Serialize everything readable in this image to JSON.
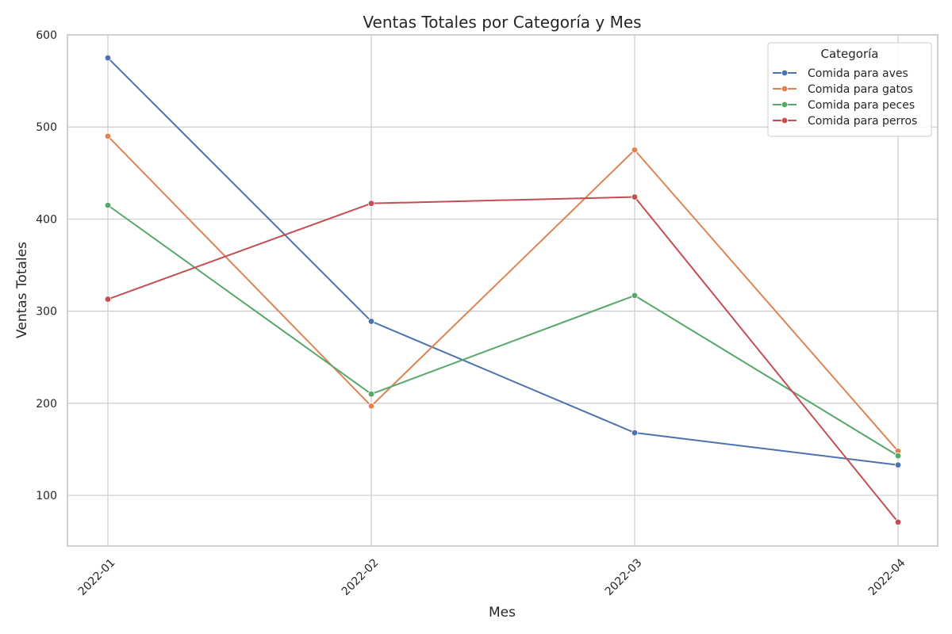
{
  "chart_data": {
    "type": "line",
    "title": "Ventas Totales por Categoría y Mes",
    "xlabel": "Mes",
    "ylabel": "Ventas Totales",
    "x": [
      "2022-01",
      "2022-02",
      "2022-03",
      "2022-04"
    ],
    "ylim": [
      45,
      600
    ],
    "yticks": [
      100,
      200,
      300,
      400,
      500,
      600
    ],
    "grid": true,
    "legend": {
      "title": "Categoría",
      "placement": "top-right"
    },
    "series": [
      {
        "name": "Comida para aves",
        "color": "#4c72b0",
        "values": [
          575,
          289,
          168,
          133
        ]
      },
      {
        "name": "Comida para gatos",
        "color": "#dd8452",
        "values": [
          490,
          197,
          475,
          148
        ]
      },
      {
        "name": "Comida para peces",
        "color": "#55a868",
        "values": [
          415,
          210,
          317,
          143
        ]
      },
      {
        "name": "Comida para perros",
        "color": "#c44e52",
        "values": [
          313,
          417,
          424,
          71
        ]
      }
    ]
  }
}
